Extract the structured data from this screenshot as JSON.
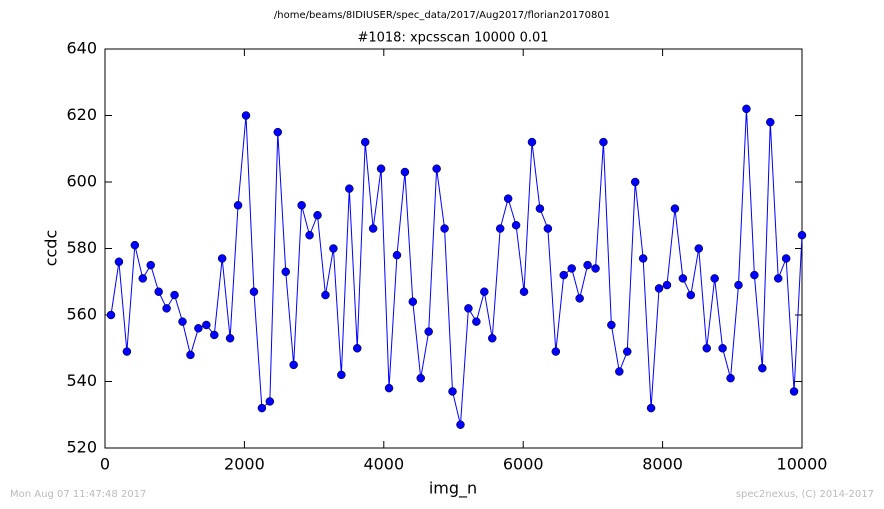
{
  "chart_data": {
    "type": "line",
    "title": "/home/beams/8IDIUSER/spec_data/2017/Aug2017/florian20170801",
    "subtitle": "#1018: xpcsscan 10000 0.01",
    "x_label": "img_n",
    "y_label": "ccdc",
    "footer_left": "Mon Aug 07 11:47:48 2017",
    "footer_right": "spec2nexus, (C) 2014-2017",
    "color": "#0000ff",
    "x": [
      86,
      200,
      314,
      428,
      542,
      656,
      770,
      884,
      998,
      1112,
      1226,
      1340,
      1454,
      1568,
      1681,
      1795,
      1909,
      2023,
      2137,
      2251,
      2365,
      2479,
      2593,
      2707,
      2821,
      2935,
      3049,
      3163,
      3277,
      3391,
      3505,
      3619,
      3733,
      3847,
      3961,
      4075,
      4189,
      4303,
      4416,
      4530,
      4644,
      4758,
      4872,
      4986,
      5100,
      5214,
      5328,
      5442,
      5556,
      5670,
      5784,
      5898,
      6012,
      6126,
      6240,
      6354,
      6468,
      6582,
      6696,
      6810,
      6924,
      7038,
      7151,
      7265,
      7379,
      7493,
      7607,
      7721,
      7835,
      7949,
      8063,
      8177,
      8291,
      8405,
      8519,
      8633,
      8747,
      8861,
      8975,
      9089,
      9203,
      9317,
      9431,
      9545,
      9659,
      9773,
      9886,
      10000
    ],
    "values": [
      560,
      576,
      549,
      581,
      571,
      575,
      567,
      562,
      566,
      558,
      548,
      556,
      557,
      554,
      577,
      553,
      593,
      620,
      567,
      532,
      534,
      615,
      573,
      545,
      593,
      584,
      590,
      566,
      580,
      542,
      598,
      550,
      612,
      586,
      604,
      538,
      578,
      603,
      564,
      541,
      555,
      604,
      586,
      537,
      527,
      562,
      558,
      567,
      553,
      586,
      595,
      587,
      567,
      612,
      592,
      586,
      549,
      572,
      574,
      565,
      575,
      574,
      612,
      557,
      543,
      549,
      600,
      577,
      532,
      568,
      569,
      592,
      571,
      566,
      580,
      550,
      571,
      550,
      541,
      569,
      622,
      572,
      544,
      618,
      571,
      577,
      537,
      584
    ],
    "xlim": [
      0,
      10000
    ],
    "xticks": [
      0,
      2000,
      4000,
      6000,
      8000,
      10000
    ],
    "ylim": [
      520,
      640
    ],
    "yticks": [
      520,
      540,
      560,
      580,
      600,
      620,
      640
    ]
  }
}
